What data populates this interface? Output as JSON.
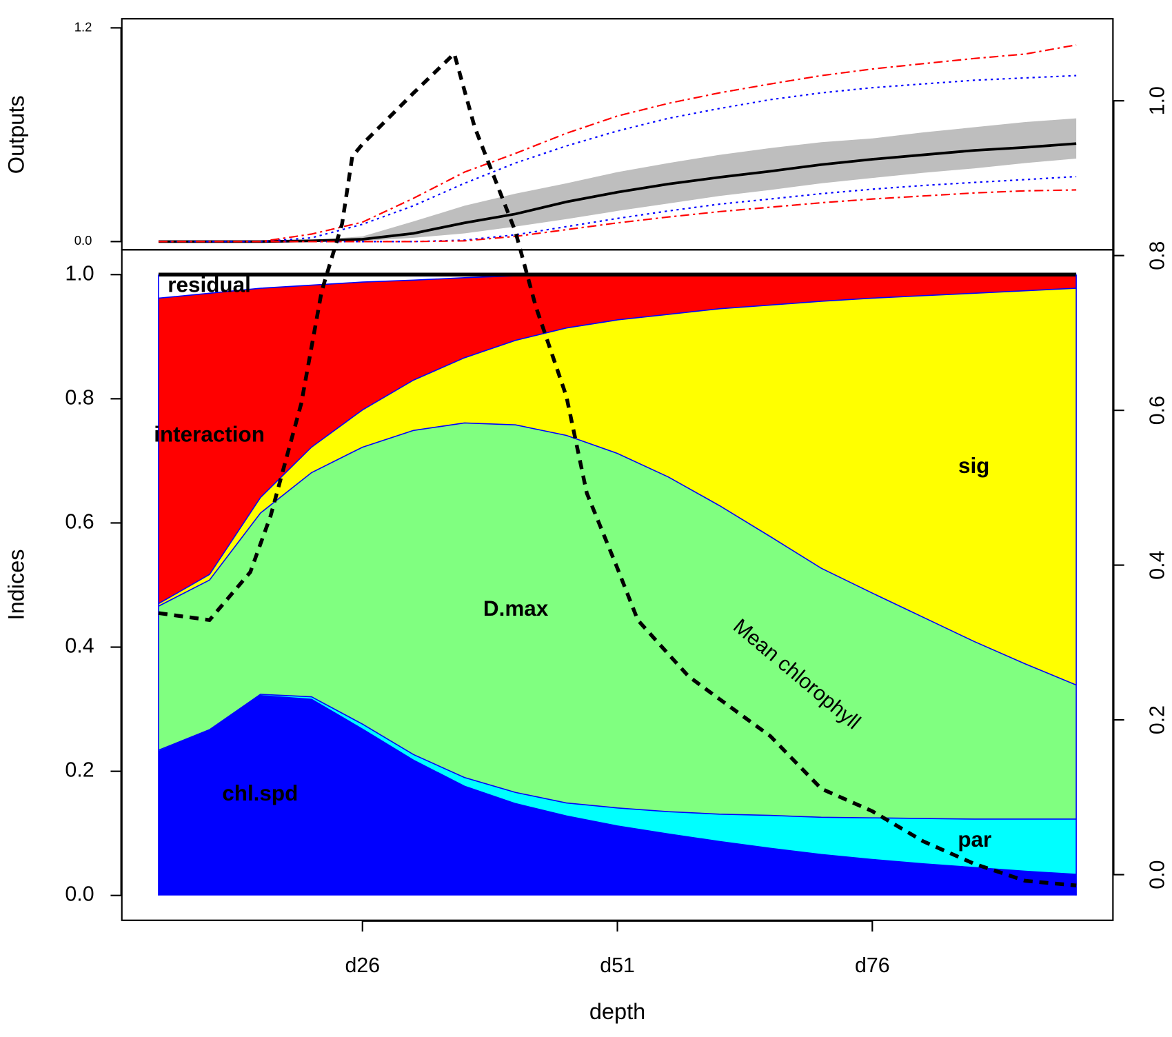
{
  "chart_data": [
    {
      "type": "line",
      "y_label": "Outputs",
      "x": [
        6,
        11,
        16,
        21,
        26,
        31,
        36,
        41,
        46,
        51,
        56,
        61,
        66,
        71,
        76,
        81,
        86,
        91,
        96
      ],
      "xlim": [
        2.4,
        99.6
      ],
      "ylim": [
        -0.046,
        1.251
      ],
      "yticks": [
        {
          "value": 0,
          "label": "0.0"
        },
        1.2
      ],
      "band": {
        "color": "#bebebe",
        "lower": [
          0,
          0,
          0,
          0,
          0.004,
          0.021,
          0.046,
          0.084,
          0.126,
          0.172,
          0.214,
          0.256,
          0.29,
          0.327,
          0.357,
          0.386,
          0.411,
          0.441,
          0.466
        ],
        "upper": [
          0,
          0,
          0,
          0.008,
          0.029,
          0.113,
          0.201,
          0.269,
          0.327,
          0.39,
          0.441,
          0.487,
          0.525,
          0.558,
          0.579,
          0.613,
          0.642,
          0.671,
          0.692
        ]
      },
      "series": [
        {
          "color": "#000000",
          "dash": "solid",
          "values": [
            0,
            0,
            0,
            0.004,
            0.013,
            0.046,
            0.105,
            0.155,
            0.223,
            0.277,
            0.323,
            0.361,
            0.395,
            0.432,
            0.462,
            0.487,
            0.512,
            0.529,
            0.55
          ]
        },
        {
          "color": "#0000ff",
          "dash": "dotted",
          "values": [
            0,
            0,
            0,
            0.021,
            0.097,
            0.201,
            0.327,
            0.441,
            0.537,
            0.621,
            0.692,
            0.747,
            0.797,
            0.835,
            0.864,
            0.885,
            0.906,
            0.919,
            0.932
          ]
        },
        {
          "color": "#0000ff",
          "dash": "dotted",
          "values": [
            0,
            0,
            0,
            0,
            0,
            0,
            0.008,
            0.038,
            0.084,
            0.13,
            0.172,
            0.21,
            0.239,
            0.269,
            0.294,
            0.315,
            0.332,
            0.348,
            0.365
          ]
        },
        {
          "color": "#ff0000",
          "dash": "dashdot",
          "values": [
            0,
            0,
            0,
            0.042,
            0.109,
            0.243,
            0.39,
            0.495,
            0.608,
            0.705,
            0.776,
            0.835,
            0.885,
            0.932,
            0.969,
            0.999,
            1.028,
            1.053,
            1.104
          ]
        },
        {
          "color": "#ff0000",
          "dash": "dashdot",
          "values": [
            0,
            0,
            0,
            0,
            0,
            0,
            0.004,
            0.029,
            0.067,
            0.105,
            0.138,
            0.168,
            0.193,
            0.218,
            0.239,
            0.256,
            0.273,
            0.285,
            0.29
          ]
        }
      ]
    },
    {
      "type": "area",
      "stacked": true,
      "x_label": "depth",
      "y_label": "Indices",
      "x": [
        6,
        11,
        16,
        21,
        26,
        31,
        36,
        41,
        46,
        51,
        56,
        61,
        66,
        71,
        76,
        81,
        86,
        91,
        96
      ],
      "xlim": [
        2.4,
        99.6
      ],
      "xticks": [
        {
          "value": 26,
          "label": "d26"
        },
        {
          "value": 51,
          "label": "d51"
        },
        {
          "value": 76,
          "label": "d76"
        }
      ],
      "ylim": [
        -0.04,
        1.04
      ],
      "yticks": [
        {
          "value": 0,
          "label": "0.0"
        },
        0.2,
        0.4,
        0.6,
        0.8,
        {
          "value": 1,
          "label": "1.0"
        }
      ],
      "y2lim": [
        -0.059,
        1.106
      ],
      "y2ticks": [
        {
          "value": 0,
          "label": "0.0"
        },
        0.2,
        0.4,
        0.6,
        0.8,
        {
          "value": 1,
          "label": "1.0"
        }
      ],
      "series": [
        {
          "name": "chl.spd",
          "color": "#0000ff",
          "values": [
            0.232,
            0.266,
            0.322,
            0.316,
            0.268,
            0.218,
            0.176,
            0.148,
            0.128,
            0.112,
            0.099,
            0.087,
            0.076,
            0.066,
            0.058,
            0.051,
            0.045,
            0.039,
            0.034
          ]
        },
        {
          "name": "par",
          "color": "#00ffff",
          "values": [
            0.002,
            0.001,
            0.002,
            0.004,
            0.008,
            0.009,
            0.014,
            0.018,
            0.021,
            0.029,
            0.036,
            0.044,
            0.053,
            0.06,
            0.067,
            0.073,
            0.078,
            0.084,
            0.089
          ]
        },
        {
          "name": "D.max",
          "color": "#80ff80",
          "values": [
            0.232,
            0.241,
            0.292,
            0.361,
            0.446,
            0.522,
            0.571,
            0.592,
            0.592,
            0.571,
            0.539,
            0.497,
            0.449,
            0.401,
            0.362,
            0.324,
            0.286,
            0.25,
            0.216
          ]
        },
        {
          "name": "sig",
          "color": "#ffff00",
          "values": [
            0.004,
            0.009,
            0.025,
            0.041,
            0.06,
            0.081,
            0.105,
            0.136,
            0.173,
            0.215,
            0.262,
            0.317,
            0.373,
            0.43,
            0.475,
            0.518,
            0.561,
            0.601,
            0.639
          ]
        },
        {
          "name": "interaction",
          "color": "#ff0000",
          "values": [
            0.492,
            0.453,
            0.337,
            0.261,
            0.206,
            0.161,
            0.129,
            0.104,
            0.085,
            0.073,
            0.064,
            0.055,
            0.049,
            0.043,
            0.038,
            0.034,
            0.03,
            0.026,
            0.022
          ]
        },
        {
          "name": "residual",
          "color": "#ffffff",
          "values": [
            0.038,
            0.03,
            0.022,
            0.017,
            0.012,
            0.009,
            0.005,
            0.002,
            0.001,
            0,
            0,
            0,
            0,
            0,
            0,
            0,
            0,
            0,
            0
          ]
        }
      ],
      "line": {
        "name": "Mean chlorophyll",
        "axis": "y2",
        "color": "#000000",
        "x": [
          6,
          11,
          15,
          17,
          20,
          22,
          24,
          25,
          26,
          31,
          35,
          37,
          41,
          43,
          46,
          48,
          51,
          53,
          56,
          58,
          61,
          66,
          71,
          76,
          81,
          86,
          91,
          96
        ],
        "values": [
          0.338,
          0.329,
          0.391,
          0.464,
          0.609,
          0.754,
          0.841,
          0.928,
          0.944,
          1.01,
          1.061,
          0.966,
          0.831,
          0.734,
          0.618,
          0.493,
          0.396,
          0.329,
          0.285,
          0.256,
          0.227,
          0.179,
          0.111,
          0.082,
          0.043,
          0.014,
          -0.008,
          -0.014
        ]
      }
    }
  ]
}
